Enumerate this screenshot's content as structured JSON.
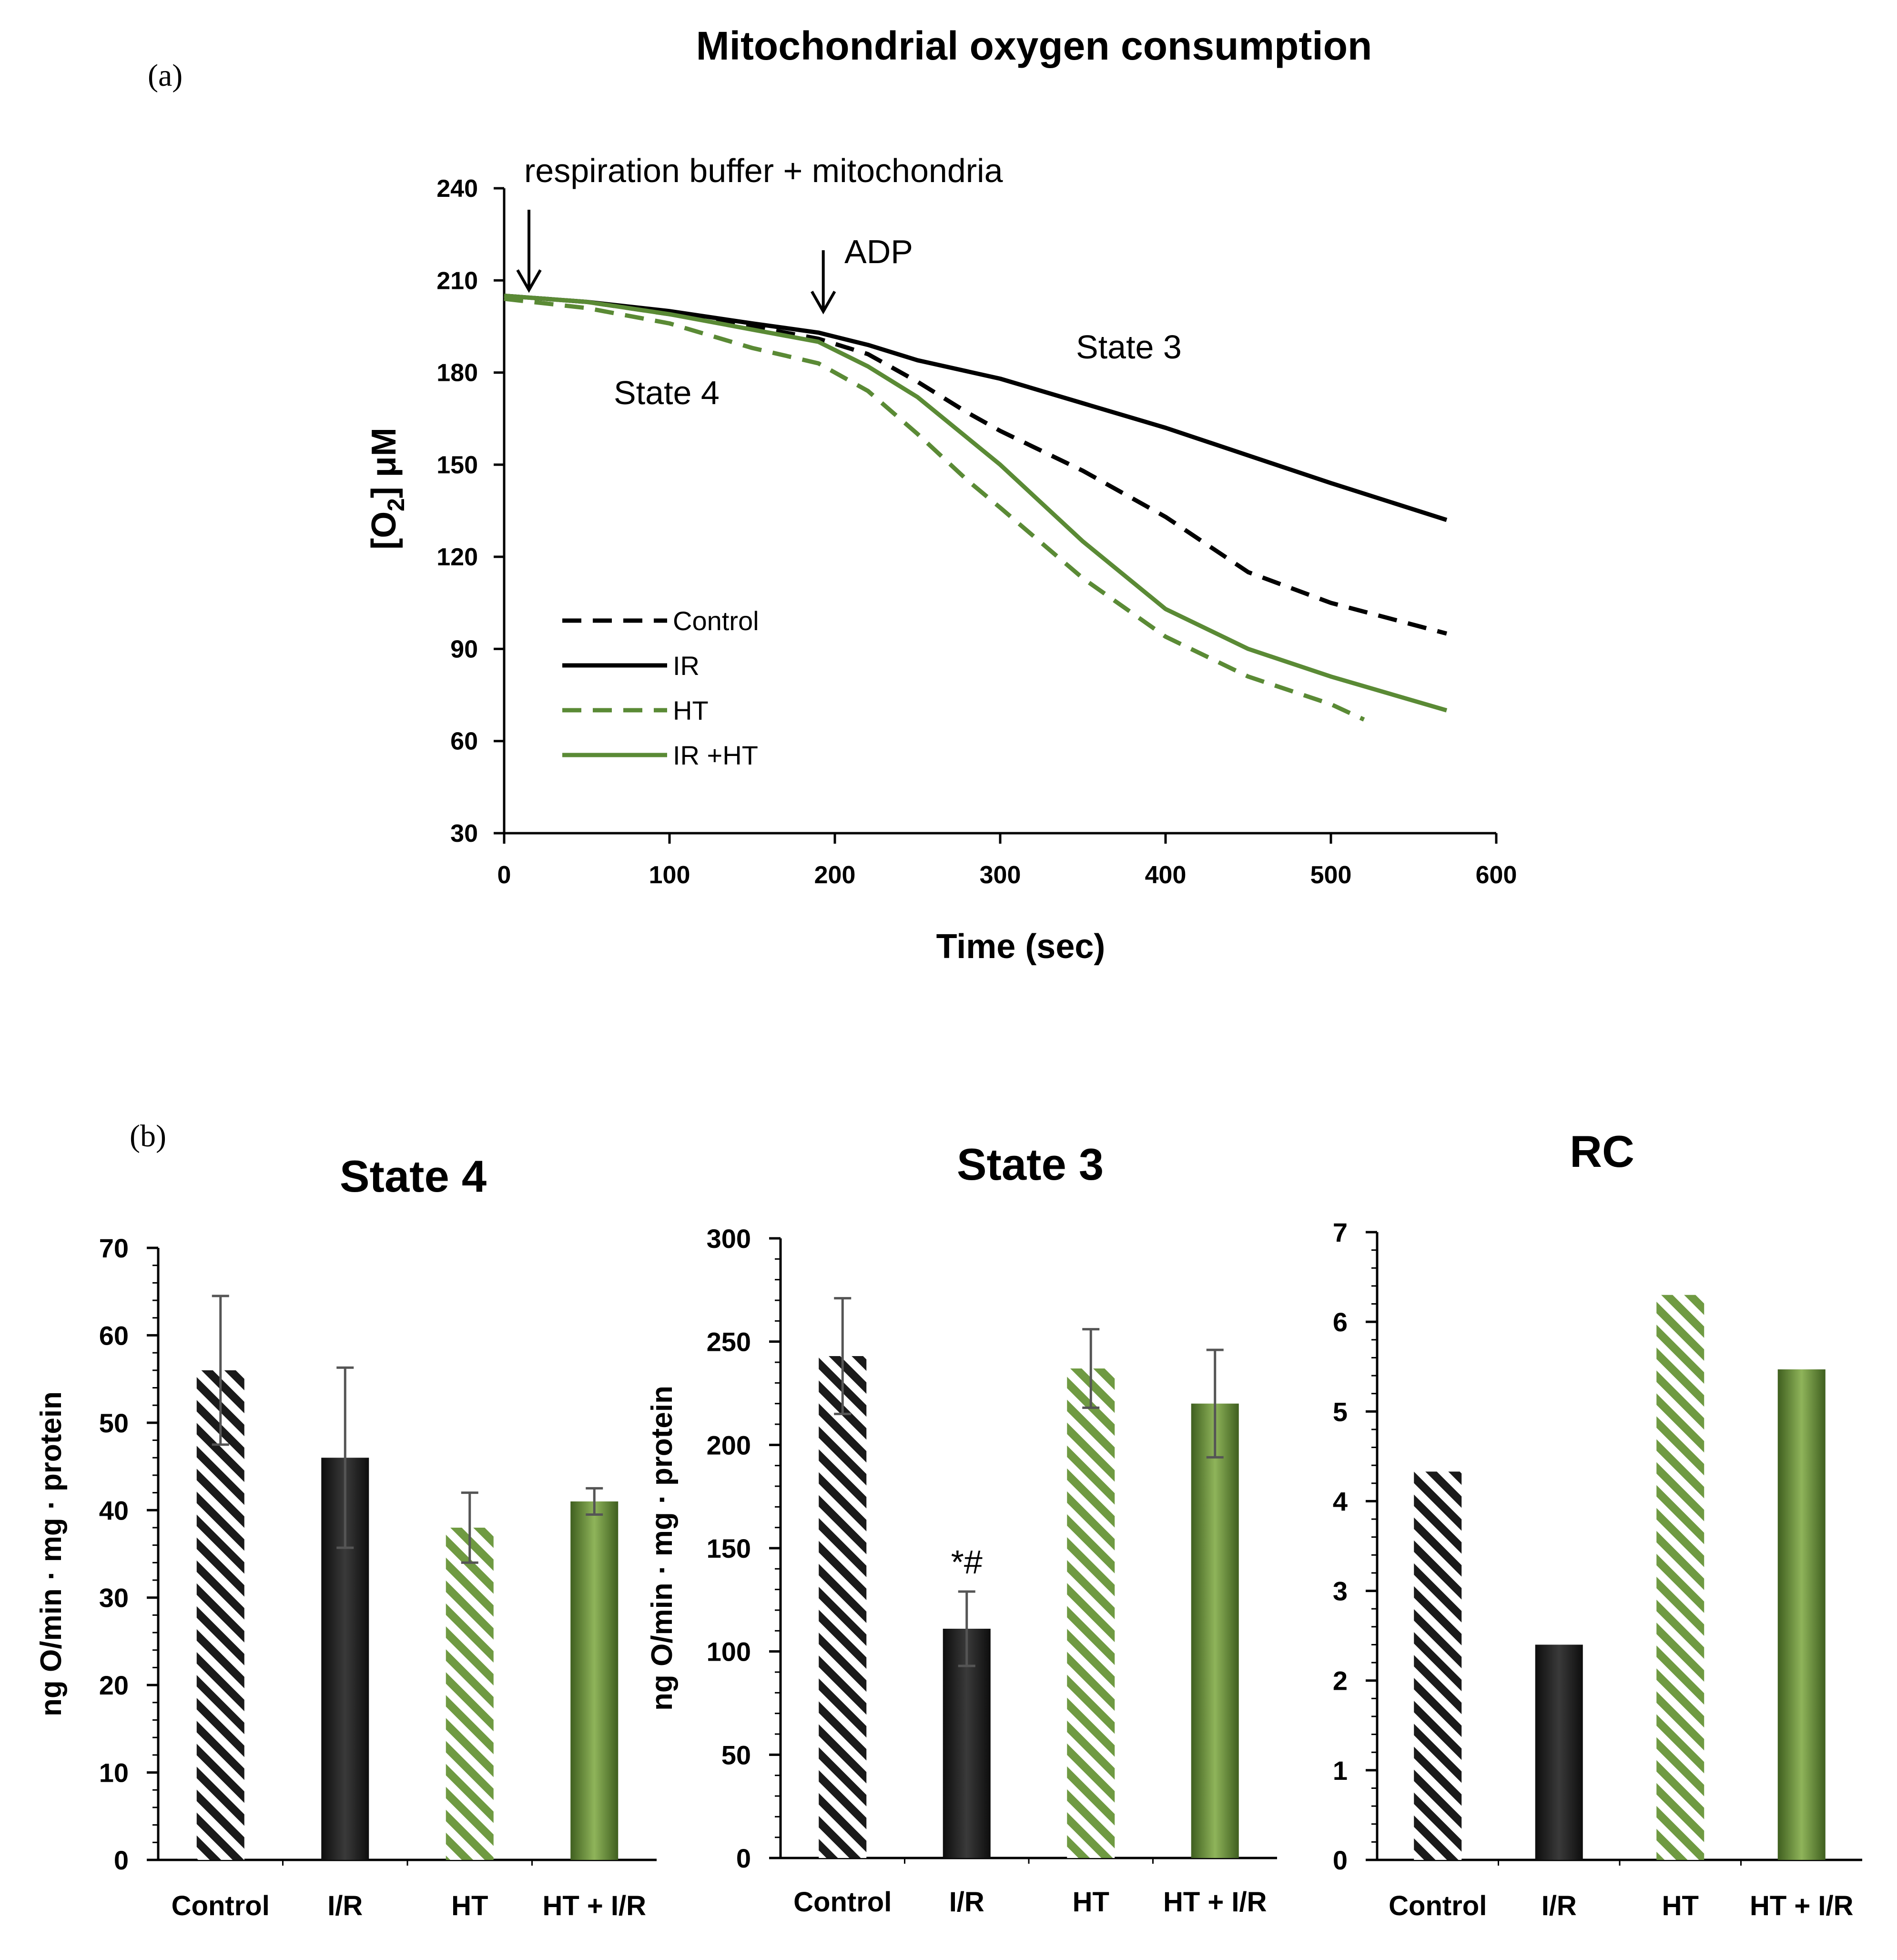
{
  "figure": {
    "panel_a_label": "(a)",
    "panel_b_label": "(b)"
  },
  "colors": {
    "black": "#000000",
    "dark_bar": "#1f1f1f",
    "green": "#5a8a35",
    "green_light": "#8fb45a",
    "green_dark": "#3f5f1f",
    "error_bar": "#555555"
  },
  "chart_data": [
    {
      "id": "line",
      "type": "line",
      "title": "Mitochondrial  oxygen consumption",
      "xlabel": "Time (sec)",
      "ylabel_main": "[O",
      "ylabel_sub": "2",
      "ylabel_unit": "] μM",
      "xlim": [
        0,
        600
      ],
      "ylim": [
        30,
        240
      ],
      "xticks": [
        0,
        100,
        200,
        300,
        400,
        500,
        600
      ],
      "yticks": [
        30,
        60,
        90,
        120,
        150,
        180,
        210,
        240
      ],
      "annotations": {
        "buffer": "respiration buffer + mitochondria",
        "adp": "ADP",
        "state4": "State 4",
        "state3": "State 3"
      },
      "arrows_x": [
        15,
        193
      ],
      "series": [
        {
          "name": "Control",
          "style": "dashed",
          "color": "#000000",
          "x": [
            0,
            50,
            100,
            150,
            190,
            220,
            250,
            280,
            300,
            350,
            400,
            450,
            500,
            570
          ],
          "y": [
            205,
            203,
            199,
            195,
            191,
            186,
            177,
            167,
            161,
            148,
            133,
            115,
            105,
            95
          ]
        },
        {
          "name": "IR",
          "style": "solid",
          "color": "#000000",
          "x": [
            0,
            50,
            100,
            150,
            190,
            220,
            250,
            300,
            350,
            400,
            450,
            500,
            570
          ],
          "y": [
            205,
            203,
            200,
            196,
            193,
            189,
            184,
            178,
            170,
            162,
            153,
            144,
            132
          ]
        },
        {
          "name": "HT",
          "style": "dashed",
          "color": "#5a8a35",
          "x": [
            0,
            50,
            100,
            150,
            190,
            220,
            250,
            280,
            300,
            350,
            400,
            450,
            500,
            520
          ],
          "y": [
            204,
            201,
            196,
            188,
            183,
            174,
            160,
            145,
            136,
            113,
            94,
            81,
            72,
            67
          ]
        },
        {
          "name": "IR +HT",
          "style": "solid",
          "color": "#5a8a35",
          "x": [
            0,
            50,
            100,
            150,
            190,
            220,
            250,
            300,
            350,
            400,
            450,
            500,
            570
          ],
          "y": [
            205,
            203,
            199,
            194,
            190,
            182,
            172,
            150,
            125,
            103,
            90,
            81,
            70
          ]
        }
      ]
    },
    {
      "id": "state4",
      "type": "bar",
      "title": "State 4",
      "ylabel": "ng O/min · mg · protein",
      "categories": [
        "Control",
        "I/R",
        "HT",
        "HT + I/R"
      ],
      "values": [
        56,
        46,
        38,
        41
      ],
      "errors": [
        8.5,
        10.3,
        4,
        1.5
      ],
      "ylim": [
        0,
        70
      ],
      "yticks": [
        0,
        10,
        20,
        30,
        40,
        50,
        60,
        70
      ],
      "significance": []
    },
    {
      "id": "state3",
      "type": "bar",
      "title": "State 3",
      "ylabel": "ng O/min · mg · protein",
      "categories": [
        "Control",
        "I/R",
        "HT",
        "HT + I/R"
      ],
      "values": [
        243,
        111,
        237,
        220
      ],
      "errors": [
        28,
        18,
        19,
        26
      ],
      "ylim": [
        0,
        300
      ],
      "yticks": [
        0,
        50,
        100,
        150,
        200,
        250,
        300
      ],
      "significance": [
        "",
        "*#",
        "",
        ""
      ]
    },
    {
      "id": "rc",
      "type": "bar",
      "title": "RC",
      "ylabel": "",
      "categories": [
        "Control",
        "I/R",
        "HT",
        "HT + I/R"
      ],
      "values": [
        4.33,
        2.4,
        6.3,
        5.47
      ],
      "errors": [],
      "ylim": [
        0,
        7
      ],
      "yticks": [
        0,
        1,
        2,
        3,
        4,
        5,
        6,
        7
      ],
      "significance": []
    }
  ]
}
